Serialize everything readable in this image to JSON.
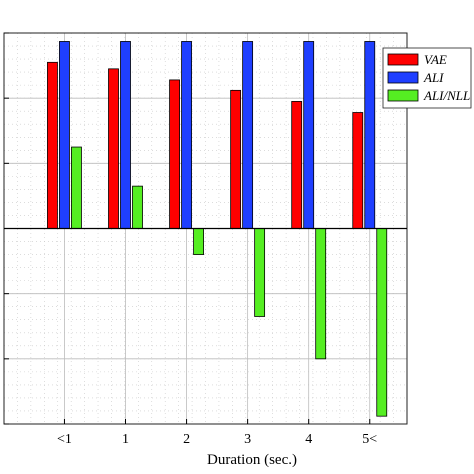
{
  "chart_data": {
    "type": "bar",
    "categories": [
      "<1",
      "1",
      "2",
      "3",
      "4",
      "5<"
    ],
    "series": [
      {
        "name": "VAE",
        "color": "#ff0000",
        "values": [
          2.55,
          2.45,
          2.28,
          2.12,
          1.95,
          1.78
        ]
      },
      {
        "name": "ALI",
        "color": "#1f3fff",
        "values": [
          2.87,
          2.87,
          2.87,
          2.87,
          2.87,
          2.87
        ]
      },
      {
        "name": "ALI/NLL",
        "color": "#55ee22",
        "values": [
          1.25,
          0.65,
          -0.4,
          -1.35,
          -2.0,
          -2.88
        ]
      }
    ],
    "xlabel": "Duration (sec.)",
    "ylabel": "",
    "ylim": [
      -3.0,
      3.0
    ],
    "grid": true,
    "legend": "top-right"
  }
}
